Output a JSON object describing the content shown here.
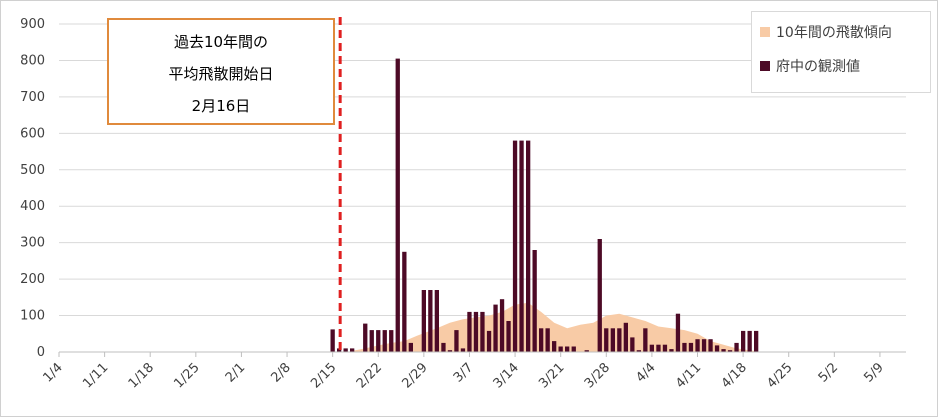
{
  "chart_data": {
    "type": "bar",
    "title": "",
    "xlabel": "",
    "ylabel": "",
    "ylim": [
      0,
      900
    ],
    "yticks": [
      0,
      100,
      200,
      300,
      400,
      500,
      600,
      700,
      800,
      900
    ],
    "xlim": [
      "1/4",
      "5/13"
    ],
    "xticks": [
      "1/4",
      "1/11",
      "1/18",
      "1/25",
      "2/1",
      "2/8",
      "2/15",
      "2/22",
      "2/29",
      "3/7",
      "3/14",
      "3/21",
      "3/28",
      "4/4",
      "4/11",
      "4/18",
      "4/25",
      "5/2",
      "5/9"
    ],
    "grid": true,
    "legend_position": "top-right",
    "series": [
      {
        "name": "10年間の飛散傾向",
        "kind": "area",
        "color": "#f8cba6",
        "x": [
          "2/18",
          "2/20",
          "2/22",
          "2/24",
          "2/26",
          "2/28",
          "3/2",
          "3/4",
          "3/6",
          "3/8",
          "3/10",
          "3/12",
          "3/14",
          "3/16",
          "3/18",
          "3/20",
          "3/22",
          "3/24",
          "3/26",
          "3/28",
          "3/30",
          "4/1",
          "4/3",
          "4/5",
          "4/7",
          "4/9",
          "4/11",
          "4/13",
          "4/15",
          "4/17",
          "4/19",
          "4/21"
        ],
        "y": [
          3,
          10,
          18,
          25,
          30,
          45,
          65,
          80,
          90,
          95,
          100,
          110,
          130,
          135,
          110,
          80,
          65,
          75,
          80,
          100,
          105,
          95,
          85,
          70,
          65,
          60,
          50,
          30,
          20,
          10,
          5,
          0
        ]
      },
      {
        "name": "府中の観測値",
        "kind": "bar",
        "color": "#4d0a26",
        "x": [
          "2/15",
          "2/16",
          "2/17",
          "2/18",
          "2/20",
          "2/21",
          "2/22",
          "2/23",
          "2/24",
          "2/25",
          "2/26",
          "2/27",
          "2/28",
          "2/29",
          "3/1",
          "3/2",
          "3/3",
          "3/4",
          "3/5",
          "3/6",
          "3/7",
          "3/8",
          "3/9",
          "3/10",
          "3/11",
          "3/12",
          "3/13",
          "3/14",
          "3/15",
          "3/16",
          "3/17",
          "3/18",
          "3/19",
          "3/20",
          "3/21",
          "3/22",
          "3/23",
          "3/24",
          "3/25",
          "3/27",
          "3/28",
          "3/29",
          "3/30",
          "3/31",
          "4/1",
          "4/2",
          "4/3",
          "4/4",
          "4/5",
          "4/6",
          "4/7",
          "4/8",
          "4/9",
          "4/10",
          "4/11",
          "4/12",
          "4/13",
          "4/14",
          "4/15",
          "4/16",
          "4/17",
          "4/18",
          "4/19",
          "4/20",
          "4/21"
        ],
        "y": [
          62,
          10,
          10,
          10,
          78,
          60,
          60,
          60,
          60,
          805,
          275,
          25,
          0,
          170,
          170,
          170,
          25,
          5,
          60,
          10,
          110,
          110,
          110,
          58,
          130,
          145,
          85,
          580,
          580,
          580,
          280,
          65,
          65,
          30,
          15,
          15,
          15,
          0,
          5,
          310,
          65,
          65,
          65,
          80,
          40,
          5,
          65,
          20,
          20,
          20,
          8,
          105,
          25,
          25,
          35,
          35,
          35,
          18,
          8,
          5,
          25,
          58,
          58,
          58,
          0
        ]
      }
    ],
    "annotation": {
      "lines": [
        "過去10年間の",
        "平均飛散開始日",
        "2月16日"
      ],
      "marker_date": "2/16",
      "marker_color": "#e02020"
    }
  }
}
